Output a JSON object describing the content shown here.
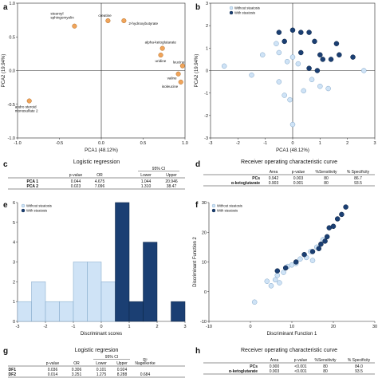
{
  "colors": {
    "orange": "#f0a45a",
    "orange_stroke": "#b3702b",
    "light_blue": "#cfe3f6",
    "light_blue_stroke": "#7ea4c7",
    "dark_blue": "#1b3f73",
    "dark_blue_stroke": "#0d2444"
  },
  "panels": {
    "a": "a",
    "b": "b",
    "c": "c",
    "d": "d",
    "e": "e",
    "f": "f",
    "g": "g",
    "h": "h"
  },
  "legend": {
    "without": "Without steatosis",
    "with": "With steatosis"
  },
  "tables": {
    "c": {
      "title": "Logistic regression",
      "ci_header": "95% CI",
      "headers": [
        "p-value",
        "OR",
        "Lower",
        "Upper"
      ],
      "rows": [
        {
          "label": "PCA 1",
          "cells": [
            "0.044",
            "4.675",
            "1.044",
            "20.946"
          ]
        },
        {
          "label": "PCA 2",
          "cells": [
            "0.023",
            "7.096",
            "1.310",
            "38.47"
          ]
        }
      ]
    },
    "d": {
      "title": "Receiver operating characteristic curve",
      "headers": [
        "Area",
        "p-value",
        "%Sensitivity",
        "% Specificity"
      ],
      "rows": [
        {
          "label": "PCs",
          "cells": [
            "0.942",
            "0.003",
            "80",
            "86.7"
          ]
        },
        {
          "label": "α-ketoglutarate",
          "cells": [
            "0.903",
            "0.001",
            "80",
            "93.5"
          ]
        }
      ]
    },
    "g": {
      "title": "Logistic regresion",
      "ci_header": "95% CI",
      "headers": [
        "p-value",
        "OR",
        "Lower",
        "Upper",
        "R²",
        "Nagelkerke"
      ],
      "rows": [
        {
          "label": "DF1",
          "cells": [
            "0.036",
            "0.306",
            "0.101",
            "0.924",
            "",
            ""
          ]
        },
        {
          "label": "DF2",
          "cells": [
            "0.014",
            "3.251",
            "1.275",
            "8.288",
            "0.684",
            ""
          ]
        }
      ]
    },
    "h": {
      "title": "Receiver operating characteristic curve",
      "headers": [
        "Area",
        "p-value",
        "%Sensitivity",
        "% Specificity"
      ],
      "rows": [
        {
          "label": "PCs",
          "cells": [
            "0.900",
            "<0.001",
            "80",
            "84.0"
          ]
        },
        {
          "label": "α-ketoglutarate",
          "cells": [
            "0.903",
            "<0.001",
            "80",
            "93.5"
          ]
        }
      ]
    }
  },
  "chart_data": [
    {
      "panel": "a",
      "type": "scatter",
      "xlabel": "PCA1 (48.12%)",
      "ylabel": "PCA2 (19.94%)",
      "xlim": [
        -1.0,
        1.0
      ],
      "ylim": [
        -1.0,
        1.0
      ],
      "xticks": [
        "-1.0",
        "-0.5",
        "0.0",
        "0.5",
        "1.0"
      ],
      "yticks": [
        "-1.0",
        "-0.5",
        "0.0",
        "0.5",
        "1.0"
      ],
      "points": [
        {
          "x": -0.32,
          "y": 0.66,
          "label": "stearoyl sphingomyelin"
        },
        {
          "x": 0.08,
          "y": 0.74,
          "label": "creatine"
        },
        {
          "x": 0.27,
          "y": 0.74,
          "label": "2-hydroxybutyrate"
        },
        {
          "x": 0.73,
          "y": 0.33,
          "label": "alpha-ketoglutarate"
        },
        {
          "x": 0.71,
          "y": 0.23,
          "label": "uridine"
        },
        {
          "x": 0.97,
          "y": 0.07,
          "label": "leucine"
        },
        {
          "x": 0.92,
          "y": -0.05,
          "label": "valine"
        },
        {
          "x": 0.95,
          "y": -0.17,
          "label": "isoleucine"
        },
        {
          "x": -0.86,
          "y": -0.45,
          "label": "andro steroid monosulfate 2"
        }
      ]
    },
    {
      "panel": "b",
      "type": "scatter",
      "xlabel": "PCA1 (48.12%)",
      "ylabel": "PCA2 (19.94%)",
      "xlim": [
        -3,
        3
      ],
      "ylim": [
        -3,
        3
      ],
      "xticks": [
        "-3",
        "-2",
        "-1",
        "0",
        "1",
        "2",
        "3"
      ],
      "yticks": [
        "-3",
        "-2",
        "-1",
        "0",
        "1",
        "2",
        "3"
      ],
      "series": [
        {
          "name": "Without steatosis",
          "points": [
            [
              -2.5,
              0.2
            ],
            [
              -1.5,
              -0.2
            ],
            [
              -1.1,
              0.7
            ],
            [
              -0.6,
              1.2
            ],
            [
              -0.5,
              0.8
            ],
            [
              -0.5,
              -0.5
            ],
            [
              -0.2,
              0.4
            ],
            [
              -0.3,
              -1.1
            ],
            [
              -0.1,
              -1.3
            ],
            [
              0.0,
              0.6
            ],
            [
              0.0,
              -2.4
            ],
            [
              0.2,
              0.3
            ],
            [
              0.4,
              -0.9
            ],
            [
              0.7,
              -0.4
            ],
            [
              1.0,
              -0.7
            ],
            [
              1.3,
              -0.8
            ],
            [
              2.6,
              0.0
            ]
          ]
        },
        {
          "name": "With steatosis",
          "points": [
            [
              -0.5,
              1.7
            ],
            [
              0.0,
              1.8
            ],
            [
              0.3,
              1.7
            ],
            [
              0.6,
              1.7
            ],
            [
              -0.3,
              1.3
            ],
            [
              0.3,
              0.8
            ],
            [
              0.8,
              1.3
            ],
            [
              1.0,
              0.7
            ],
            [
              1.1,
              0.5
            ],
            [
              1.4,
              0.5
            ],
            [
              1.7,
              0.7
            ],
            [
              2.2,
              0.6
            ],
            [
              1.6,
              1.2
            ],
            [
              0.6,
              0.1
            ],
            [
              0.9,
              0.0
            ]
          ]
        }
      ]
    },
    {
      "panel": "e",
      "type": "bar",
      "xlabel": "Discriminant scores",
      "ylabel": "",
      "xlim": [
        -3,
        3
      ],
      "ylim": [
        0,
        6
      ],
      "xticks": [
        "-3",
        "-2",
        "-1",
        "0",
        "1",
        "2",
        "3"
      ],
      "yticks": [
        "0",
        "1",
        "2",
        "3",
        "4",
        "5",
        "6"
      ],
      "series": [
        {
          "name": "Without steatosis",
          "bins": [
            [
              -3.0,
              -2.5,
              1
            ],
            [
              -2.5,
              -2.0,
              2
            ],
            [
              -2.0,
              -1.5,
              1
            ],
            [
              -1.5,
              -1.0,
              1
            ],
            [
              -1.0,
              -0.5,
              3
            ],
            [
              -0.5,
              0.0,
              3
            ],
            [
              0.0,
              0.5,
              2
            ],
            [
              0.5,
              1.0,
              1
            ]
          ]
        },
        {
          "name": "With steatosis",
          "bins": [
            [
              0.5,
              1.0,
              6
            ],
            [
              1.0,
              1.5,
              1
            ],
            [
              1.5,
              2.0,
              4
            ],
            [
              2.5,
              3.0,
              1
            ]
          ]
        }
      ]
    },
    {
      "panel": "f",
      "type": "scatter",
      "xlabel": "Discriminant Function 1",
      "ylabel": "Discriminant Function 2",
      "xlim": [
        -10,
        30
      ],
      "ylim": [
        -10,
        30
      ],
      "xticks": [
        "-10",
        "0",
        "10",
        "20",
        "30"
      ],
      "yticks": [
        "-10",
        "0",
        "10",
        "20",
        "30"
      ],
      "series": [
        {
          "name": "Without steatosis",
          "points": [
            [
              1.0,
              -3.5
            ],
            [
              4.0,
              3.5
            ],
            [
              5.0,
              2.0
            ],
            [
              6.0,
              4.0
            ],
            [
              6.5,
              5.5
            ],
            [
              7.0,
              3.0
            ],
            [
              8.0,
              6.5
            ],
            [
              9.0,
              8.5
            ],
            [
              10.0,
              9.0
            ],
            [
              11.0,
              9.5
            ],
            [
              12.0,
              11.0
            ],
            [
              13.5,
              11.5
            ],
            [
              14.5,
              13.5
            ],
            [
              15.0,
              10.5
            ],
            [
              16.0,
              15.0
            ],
            [
              17.5,
              17.5
            ]
          ]
        },
        {
          "name": "With steatosis",
          "points": [
            [
              6.5,
              7.0
            ],
            [
              8.5,
              8.0
            ],
            [
              11.0,
              10.0
            ],
            [
              13.0,
              12.5
            ],
            [
              15.0,
              13.5
            ],
            [
              16.5,
              14.5
            ],
            [
              17.0,
              16.0
            ],
            [
              18.0,
              17.0
            ],
            [
              18.5,
              18.5
            ],
            [
              19.0,
              21.5
            ],
            [
              20.0,
              22.0
            ],
            [
              21.0,
              24.5
            ],
            [
              22.0,
              26.0
            ],
            [
              23.0,
              28.5
            ]
          ]
        }
      ]
    }
  ]
}
